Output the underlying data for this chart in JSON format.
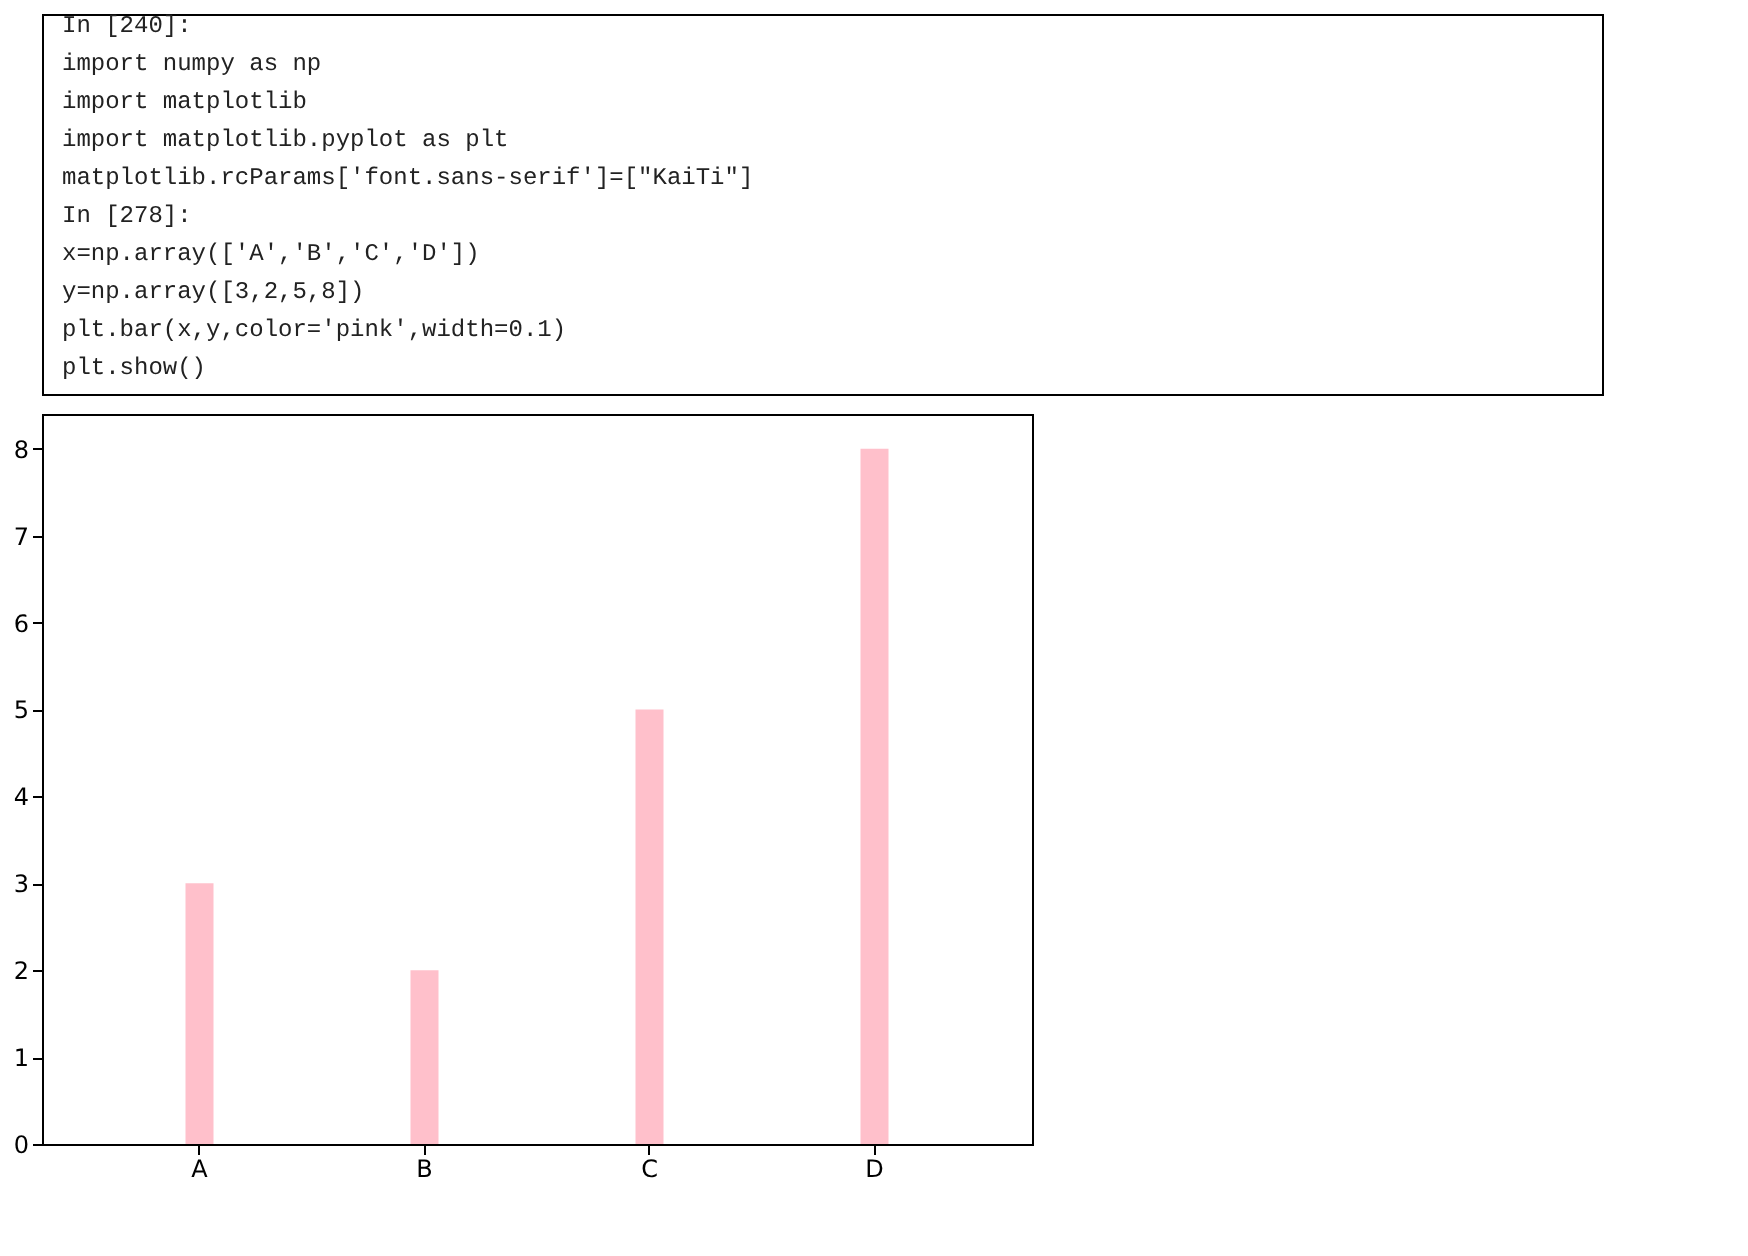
{
  "chart_data": {
    "type": "bar",
    "categories": [
      "A",
      "B",
      "C",
      "D"
    ],
    "values": [
      3,
      2,
      5,
      8
    ],
    "color": "#ffc0cb",
    "ylim": [
      0,
      8.4
    ],
    "yticks": [
      0,
      1,
      2,
      3,
      4,
      5,
      6,
      7,
      8
    ],
    "grid": false,
    "annotations": [
      "In [240]:",
      "import numpy as np",
      "import matplotlib",
      "import matplotlib.pyplot as plt",
      "matplotlib.rcParams['font.sans-serif']=[\"KaiTi\"]",
      "In [278]:",
      "x=np.array(['A','B','C','D'])",
      "y=np.array([3,2,5,8])",
      "plt.bar(x,y,color='pink',width=0.1)",
      "plt.show()"
    ]
  }
}
